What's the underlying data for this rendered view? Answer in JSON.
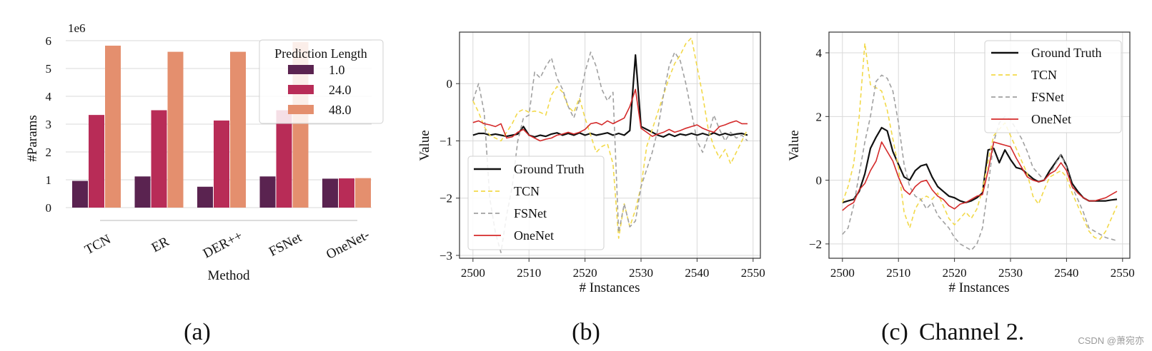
{
  "captions": [
    "(a)",
    "(b)",
    "(c)",
    "Channel 2."
  ],
  "watermark": "CSDN @萧宛亦",
  "chart_data": [
    {
      "type": "bar",
      "title": "",
      "xlabel": "Method",
      "ylabel": "#Params",
      "scale_note": "1e6",
      "ylim": [
        0,
        6
      ],
      "yticks": [
        "0",
        "1",
        "2",
        "3",
        "4",
        "5",
        "6"
      ],
      "grid": true,
      "categories": [
        "TCN",
        "ER",
        "DER++",
        "FSNet",
        "OneNet-"
      ],
      "legend_title": "Prediction Length",
      "legend_position": "top-right",
      "series": [
        {
          "name": "1.0",
          "color": "#5a2350",
          "values": [
            0.96,
            1.12,
            0.75,
            1.12,
            1.04
          ]
        },
        {
          "name": "24.0",
          "color": "#b82c57",
          "values": [
            3.33,
            3.5,
            3.13,
            3.5,
            1.05
          ]
        },
        {
          "name": "48.0",
          "color": "#e48f6e",
          "values": [
            5.82,
            5.6,
            5.6,
            5.95,
            1.06
          ]
        }
      ]
    },
    {
      "type": "line",
      "title": "",
      "xlabel": "# Instances",
      "ylabel": "Value",
      "xlim": [
        2500,
        2549
      ],
      "ylim": [
        -3.05,
        0.9
      ],
      "xticks": [
        "2500",
        "2510",
        "2520",
        "2530",
        "2540",
        "2550"
      ],
      "yticks": [
        "0",
        "−1",
        "−2",
        "−3"
      ],
      "grid": true,
      "legend_position": "bottom-left",
      "x_start": 2500,
      "series": [
        {
          "name": "Ground Truth",
          "color": "#111111",
          "dash": "solid",
          "values": [
            -0.9,
            -0.87,
            -0.87,
            -0.9,
            -0.88,
            -0.9,
            -0.92,
            -0.9,
            -0.88,
            -0.75,
            -0.9,
            -0.93,
            -0.9,
            -0.92,
            -0.88,
            -0.86,
            -0.9,
            -0.87,
            -0.9,
            -0.86,
            -0.9,
            -0.87,
            -0.9,
            -0.88,
            -0.86,
            -0.9,
            -0.87,
            -0.9,
            -0.82,
            0.5,
            -0.75,
            -0.8,
            -0.85,
            -0.9,
            -0.93,
            -0.88,
            -0.92,
            -0.88,
            -0.9,
            -0.87,
            -0.9,
            -0.87,
            -0.9,
            -0.86,
            -0.9,
            -0.87,
            -0.9,
            -0.88,
            -0.87,
            -0.9
          ]
        },
        {
          "name": "TCN",
          "color": "#f2d94a",
          "dash": "dashed",
          "values": [
            -0.3,
            -0.5,
            -0.75,
            -0.9,
            -0.95,
            -1.0,
            -0.85,
            -0.7,
            -0.5,
            -0.45,
            -0.5,
            -0.48,
            -0.5,
            -0.55,
            -0.2,
            -0.05,
            -0.15,
            -0.4,
            -0.5,
            -0.25,
            -0.6,
            -0.9,
            -1.2,
            -1.1,
            -1.05,
            -1.4,
            -2.7,
            -2.1,
            -2.5,
            -2.2,
            -1.8,
            -1.1,
            -0.8,
            -0.5,
            -0.2,
            0.1,
            0.35,
            0.5,
            0.7,
            0.8,
            0.3,
            -0.2,
            -0.8,
            -1.1,
            -1.3,
            -1.15,
            -1.4,
            -1.2,
            -1.0,
            -0.8
          ]
        },
        {
          "name": "FSNet",
          "color": "#a0a0a0",
          "dash": "dashed",
          "values": [
            -0.3,
            0.0,
            -0.5,
            -2.0,
            -2.6,
            -2.95,
            -2.3,
            -1.8,
            -1.0,
            -0.6,
            -0.55,
            0.2,
            0.1,
            0.3,
            0.45,
            0.1,
            -0.1,
            -0.4,
            -0.6,
            -0.3,
            0.2,
            0.55,
            0.3,
            -0.1,
            -0.3,
            -0.15,
            -2.6,
            -2.1,
            -2.5,
            -2.4,
            -1.8,
            -1.5,
            -1.2,
            -0.8,
            -0.2,
            0.3,
            0.55,
            0.4,
            0.0,
            -0.5,
            -1.0,
            -1.2,
            -0.9,
            -0.55,
            -0.8,
            -1.0,
            -0.85,
            -0.95,
            -0.9,
            -1.0
          ]
        },
        {
          "name": "OneNet",
          "color": "#d42a2a",
          "dash": "solid",
          "values": [
            -0.68,
            -0.65,
            -0.7,
            -0.72,
            -0.75,
            -0.7,
            -0.95,
            -0.93,
            -0.85,
            -0.8,
            -0.9,
            -0.95,
            -1.0,
            -0.97,
            -0.95,
            -0.9,
            -0.88,
            -0.85,
            -0.88,
            -0.85,
            -0.8,
            -0.7,
            -0.68,
            -0.72,
            -0.65,
            -0.7,
            -0.65,
            -0.6,
            -0.4,
            -0.1,
            -0.78,
            -0.85,
            -0.92,
            -0.88,
            -0.85,
            -0.8,
            -0.85,
            -0.82,
            -0.78,
            -0.75,
            -0.72,
            -0.78,
            -0.82,
            -0.85,
            -0.75,
            -0.72,
            -0.68,
            -0.65,
            -0.7,
            -0.7
          ]
        }
      ]
    },
    {
      "type": "line",
      "title": "",
      "xlabel": "# Instances",
      "ylabel": "Value",
      "xlim": [
        2500,
        2549
      ],
      "ylim": [
        -2.45,
        4.65
      ],
      "xticks": [
        "2500",
        "2510",
        "2520",
        "2530",
        "2540",
        "2550"
      ],
      "yticks": [
        "4",
        "2",
        "0",
        "−2"
      ],
      "grid": true,
      "legend_position": "top-right",
      "x_start": 2500,
      "series": [
        {
          "name": "Ground Truth",
          "color": "#111111",
          "dash": "solid",
          "values": [
            -0.7,
            -0.65,
            -0.6,
            -0.35,
            0.2,
            1.0,
            1.35,
            1.65,
            1.55,
            0.9,
            0.5,
            0.1,
            0.0,
            0.3,
            0.45,
            0.5,
            0.1,
            -0.2,
            -0.35,
            -0.5,
            -0.55,
            -0.65,
            -0.7,
            -0.65,
            -0.55,
            -0.4,
            0.95,
            1.0,
            0.55,
            0.95,
            0.65,
            0.4,
            0.35,
            0.2,
            0.05,
            -0.05,
            0.0,
            0.3,
            0.55,
            0.8,
            0.45,
            -0.1,
            -0.35,
            -0.55,
            -0.65,
            -0.65,
            -0.65,
            -0.65,
            -0.62,
            -0.6
          ]
        },
        {
          "name": "TCN",
          "color": "#f2d94a",
          "dash": "dashed",
          "values": [
            -0.7,
            -0.2,
            0.5,
            2.0,
            4.3,
            3.0,
            2.9,
            2.8,
            2.2,
            1.3,
            0.4,
            -1.0,
            -1.5,
            -0.9,
            -0.6,
            -0.5,
            -0.6,
            -0.4,
            -0.8,
            -1.2,
            -1.4,
            -1.2,
            -1.0,
            -1.2,
            -0.9,
            -0.3,
            0.6,
            1.4,
            1.6,
            1.8,
            1.4,
            1.0,
            0.6,
            0.2,
            -0.5,
            -0.75,
            -0.3,
            0.1,
            0.2,
            0.3,
            0.1,
            -0.4,
            -0.8,
            -1.2,
            -1.6,
            -1.8,
            -1.85,
            -1.6,
            -1.2,
            -0.8
          ]
        },
        {
          "name": "FSNet",
          "color": "#a0a0a0",
          "dash": "dashed",
          "values": [
            -1.7,
            -1.5,
            -0.8,
            0.2,
            1.2,
            2.0,
            3.1,
            3.3,
            3.2,
            2.8,
            1.8,
            0.5,
            -0.2,
            -0.5,
            -0.6,
            -0.9,
            -0.7,
            -1.1,
            -1.3,
            -1.5,
            -1.8,
            -2.0,
            -2.1,
            -2.2,
            -2.0,
            -1.5,
            -0.2,
            1.2,
            1.8,
            2.0,
            1.9,
            1.6,
            1.3,
            0.9,
            0.4,
            0.2,
            0.0,
            0.2,
            0.5,
            0.8,
            0.4,
            -0.2,
            -0.6,
            -1.0,
            -1.5,
            -1.6,
            -1.7,
            -1.8,
            -1.85,
            -1.9
          ]
        },
        {
          "name": "OneNet",
          "color": "#d42a2a",
          "dash": "solid",
          "values": [
            -0.95,
            -0.8,
            -0.7,
            -0.3,
            -0.1,
            0.3,
            0.6,
            1.2,
            0.9,
            0.6,
            0.1,
            -0.3,
            -0.45,
            -0.2,
            -0.05,
            0.0,
            -0.3,
            -0.5,
            -0.6,
            -0.8,
            -0.9,
            -0.75,
            -0.7,
            -0.6,
            -0.5,
            -0.45,
            0.3,
            1.2,
            1.15,
            1.1,
            1.05,
            0.7,
            0.4,
            0.1,
            0.0,
            -0.05,
            0.0,
            0.2,
            0.3,
            0.55,
            0.3,
            -0.2,
            -0.4,
            -0.55,
            -0.65,
            -0.65,
            -0.6,
            -0.55,
            -0.45,
            -0.35
          ]
        }
      ]
    }
  ]
}
